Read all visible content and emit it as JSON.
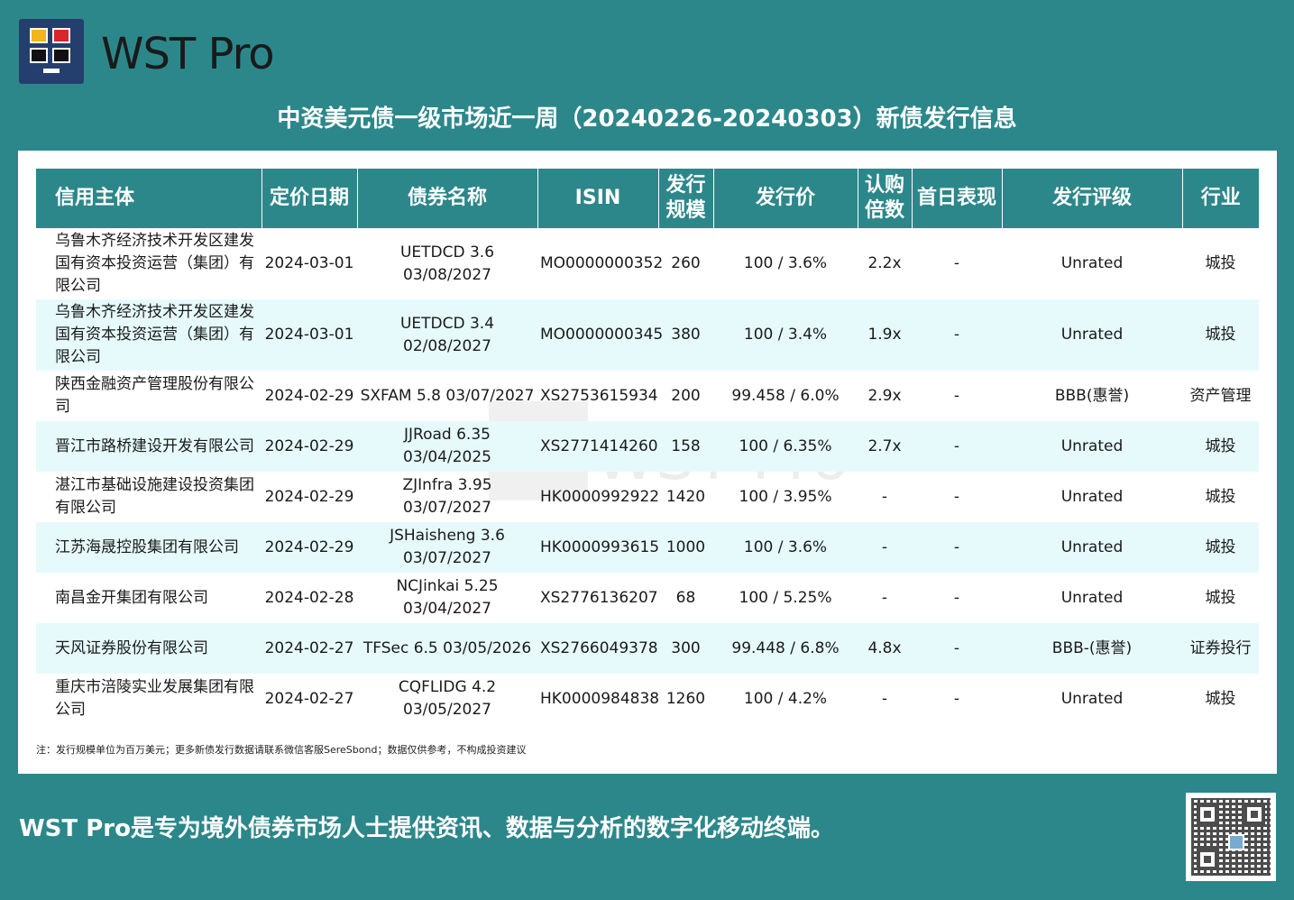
{
  "brand": {
    "name": "WST Pro"
  },
  "title": "中资美元债一级市场近一周（20240226-20240303）新债发行信息",
  "table": {
    "headers": [
      "信用主体",
      "定价日期",
      "债券名称",
      "ISIN",
      "发行规模",
      "发行价",
      "认购倍数",
      "首日表现",
      "发行评级",
      "行业"
    ],
    "headers_wrapped": {
      "issue_size": [
        "发行",
        "规模"
      ],
      "subscription": [
        "认购",
        "倍数"
      ]
    },
    "rows": [
      {
        "issuer": "乌鲁木齐经济技术开发区建发国有资本投资运营（集团）有限公司",
        "date": "2024-03-01",
        "bond": "UETDCD 3.6 03/08/2027",
        "isin": "MO0000000352",
        "size": "260",
        "price": "100 / 3.6%",
        "sub": "2.2x",
        "first_day": "-",
        "rating": "Unrated",
        "industry": "城投"
      },
      {
        "issuer": "乌鲁木齐经济技术开发区建发国有资本投资运营（集团）有限公司",
        "date": "2024-03-01",
        "bond": "UETDCD 3.4 02/08/2027",
        "isin": "MO0000000345",
        "size": "380",
        "price": "100 / 3.4%",
        "sub": "1.9x",
        "first_day": "-",
        "rating": "Unrated",
        "industry": "城投"
      },
      {
        "issuer": "陕西金融资产管理股份有限公司",
        "date": "2024-02-29",
        "bond": "SXFAM 5.8 03/07/2027",
        "isin": "XS2753615934",
        "size": "200",
        "price": "99.458 / 6.0%",
        "sub": "2.9x",
        "first_day": "-",
        "rating": "BBB(惠誉)",
        "industry": "资产管理"
      },
      {
        "issuer": "晋江市路桥建设开发有限公司",
        "date": "2024-02-29",
        "bond": "JJRoad 6.35 03/04/2025",
        "isin": "XS2771414260",
        "size": "158",
        "price": "100 / 6.35%",
        "sub": "2.7x",
        "first_day": "-",
        "rating": "Unrated",
        "industry": "城投"
      },
      {
        "issuer": "湛江市基础设施建设投资集团有限公司",
        "date": "2024-02-29",
        "bond": "ZJInfra 3.95 03/07/2027",
        "isin": "HK0000992922",
        "size": "1420",
        "price": "100 / 3.95%",
        "sub": "-",
        "first_day": "-",
        "rating": "Unrated",
        "industry": "城投"
      },
      {
        "issuer": "江苏海晟控股集团有限公司",
        "date": "2024-02-29",
        "bond": "JSHaisheng 3.6 03/07/2027",
        "isin": "HK0000993615",
        "size": "1000",
        "price": "100 / 3.6%",
        "sub": "-",
        "first_day": "-",
        "rating": "Unrated",
        "industry": "城投"
      },
      {
        "issuer": "南昌金开集团有限公司",
        "date": "2024-02-28",
        "bond": "NCJinkai 5.25 03/04/2027",
        "isin": "XS2776136207",
        "size": "68",
        "price": "100 / 5.25%",
        "sub": "-",
        "first_day": "-",
        "rating": "Unrated",
        "industry": "城投"
      },
      {
        "issuer": "天风证券股份有限公司",
        "date": "2024-02-27",
        "bond": "TFSec 6.5 03/05/2026",
        "isin": "XS2766049378",
        "size": "300",
        "price": "99.448 / 6.8%",
        "sub": "4.8x",
        "first_day": "-",
        "rating": "BBB-(惠誉)",
        "industry": "证券投行"
      },
      {
        "issuer": "重庆市涪陵实业发展集团有限公司",
        "date": "2024-02-27",
        "bond": "CQFLIDG 4.2 03/05/2027",
        "isin": "HK0000984838",
        "size": "1260",
        "price": "100 / 4.2%",
        "sub": "-",
        "first_day": "-",
        "rating": "Unrated",
        "industry": "城投"
      }
    ]
  },
  "note": "注：发行规模单位为百万美元；更多新债发行数据请联系微信客服SereSbond；数据仅供参考，不构成投资建议",
  "slogan": "WST Pro是专为境外债券市场人士提供资讯、数据与分析的数字化移动终端。",
  "icons": {
    "logo": "wst-logo-icon",
    "qr": "qr-code-icon"
  }
}
